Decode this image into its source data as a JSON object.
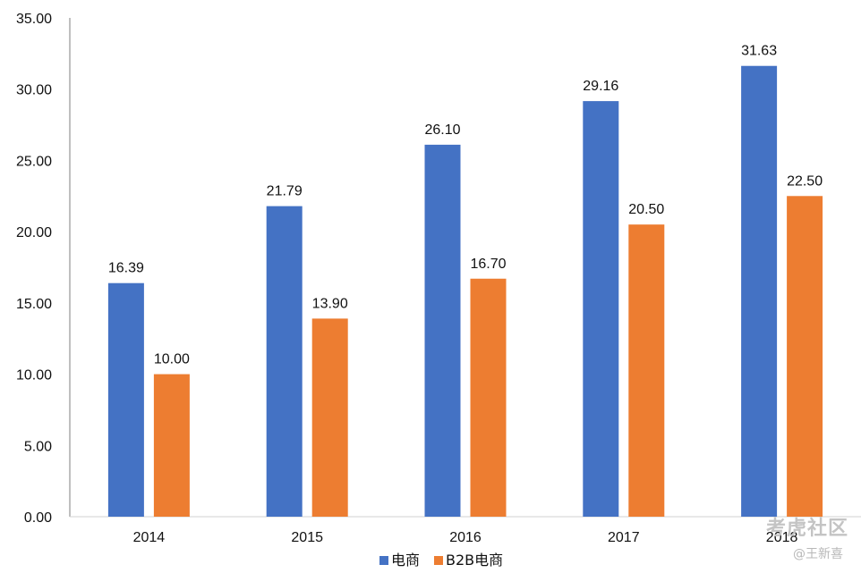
{
  "chart_data": {
    "type": "bar",
    "title": "",
    "xlabel": "",
    "ylabel": "",
    "categories": [
      "2014",
      "2015",
      "2016",
      "2017",
      "2018"
    ],
    "series": [
      {
        "name": "电商",
        "color": "#4472C4",
        "values": [
          16.39,
          21.79,
          26.1,
          29.16,
          31.63
        ],
        "labels": [
          "16.39",
          "21.79",
          "26.10",
          "29.16",
          "31.63"
        ]
      },
      {
        "name": "B2B电商",
        "color": "#ED7D31",
        "values": [
          10.0,
          13.9,
          16.7,
          20.5,
          22.5
        ],
        "labels": [
          "10.00",
          "13.90",
          "16.70",
          "20.50",
          "22.50"
        ]
      }
    ],
    "ylim": [
      0,
      35
    ],
    "yticks": [
      "0.00",
      "5.00",
      "10.00",
      "15.00",
      "20.00",
      "25.00",
      "30.00",
      "35.00"
    ],
    "grid": false,
    "legend": "bottom-center"
  },
  "watermark": {
    "main": "考虎社区",
    "sub": "@王新喜"
  }
}
